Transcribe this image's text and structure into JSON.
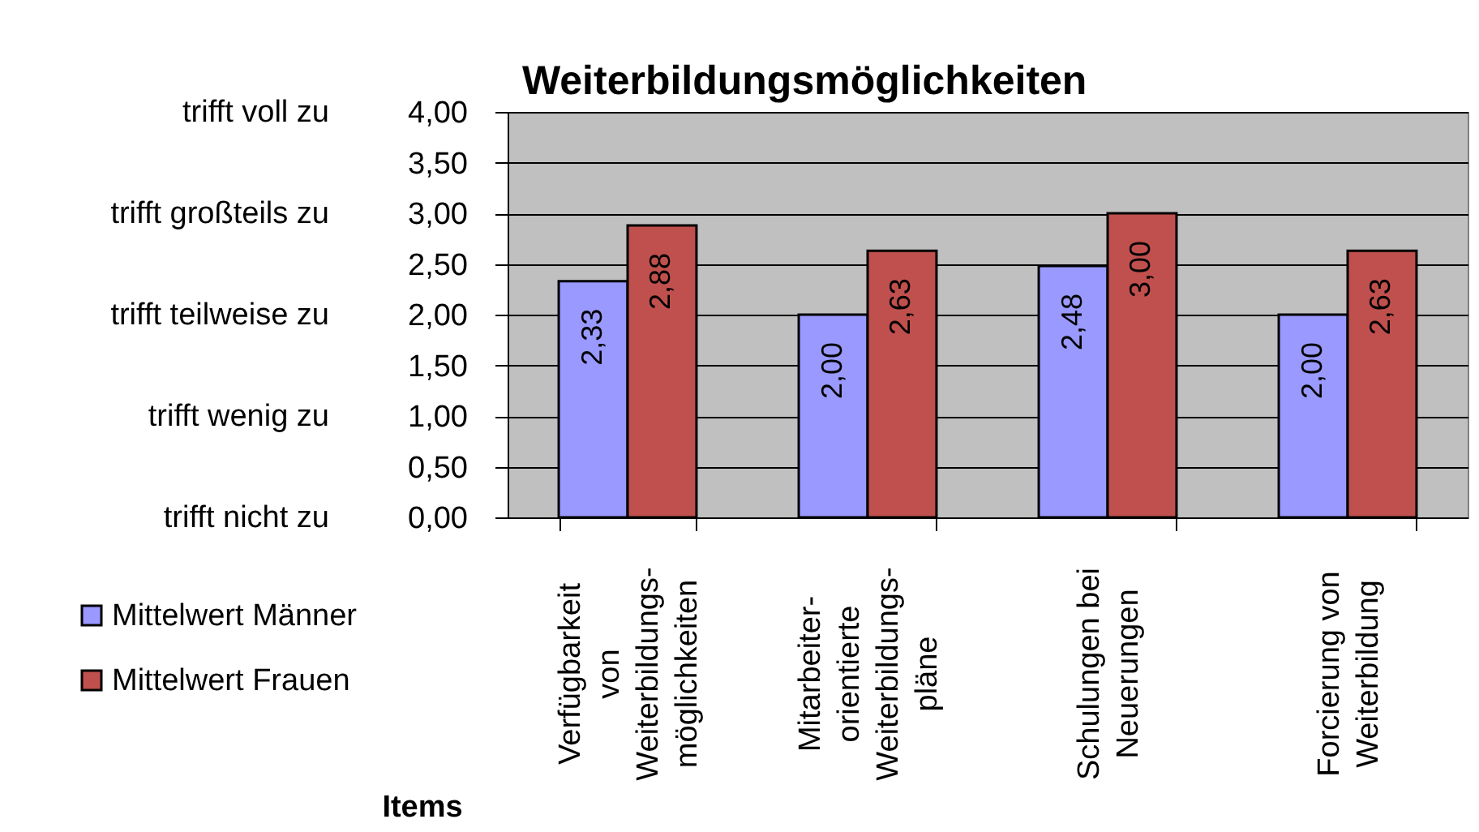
{
  "chart_data": {
    "type": "bar",
    "title": "Weiterbildungsmöglichkeiten",
    "xlabel": "Items",
    "categories": [
      "Verfügbarkeit von Weiterbildungs-möglichkeiten",
      "Mitarbeiter-orientierte Weiterbildungs-pläne",
      "Schulungen bei Neuerungen",
      "Forcierung von Weiterbildung"
    ],
    "series": [
      {
        "name": "Mittelwert Männer",
        "color": "#9999ff",
        "values": [
          2.33,
          2.0,
          2.48,
          2.0
        ],
        "value_labels": [
          "2,33",
          "2,00",
          "2,48",
          "2,00"
        ]
      },
      {
        "name": "Mittelwert Frauen",
        "color": "#c0504d",
        "values": [
          2.88,
          2.63,
          3.0,
          2.63
        ],
        "value_labels": [
          "2,88",
          "2,63",
          "3,00",
          "2,63"
        ]
      }
    ],
    "ylim": [
      0,
      4
    ],
    "yticks": [
      {
        "value": 0,
        "label": "0,00"
      },
      {
        "value": 0.5,
        "label": "0,50"
      },
      {
        "value": 1,
        "label": "1,00"
      },
      {
        "value": 1.5,
        "label": "1,50"
      },
      {
        "value": 2,
        "label": "2,00"
      },
      {
        "value": 2.5,
        "label": "2,50"
      },
      {
        "value": 3,
        "label": "3,00"
      },
      {
        "value": 3.5,
        "label": "3,50"
      },
      {
        "value": 4,
        "label": "4,00"
      }
    ],
    "y2_categories": [
      "trifft voll zu",
      "trifft großteils zu",
      "trifft teilweise zu",
      "trifft wenig zu",
      "trifft nicht zu"
    ],
    "grid": "y",
    "legend": "bottom left"
  }
}
